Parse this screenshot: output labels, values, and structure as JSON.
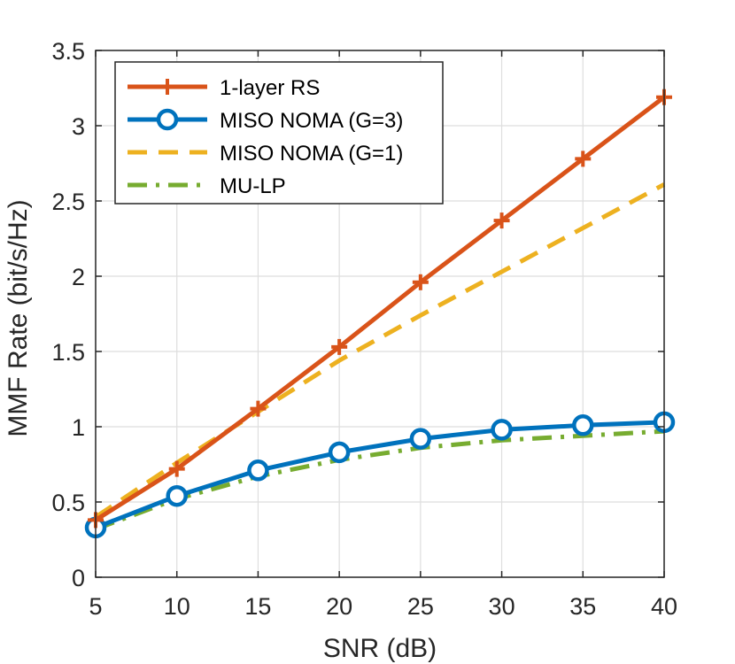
{
  "chart_data": {
    "type": "line",
    "title": "",
    "xlabel": "SNR (dB)",
    "ylabel": "MMF Rate (bit/s/Hz)",
    "x": [
      5,
      10,
      15,
      20,
      25,
      30,
      35,
      40
    ],
    "xlim": [
      5,
      40
    ],
    "ylim": [
      0,
      3.5
    ],
    "xticks": [
      5,
      10,
      15,
      20,
      25,
      30,
      35,
      40
    ],
    "yticks": [
      0,
      0.5,
      1,
      1.5,
      2,
      2.5,
      3,
      3.5
    ],
    "ytick_labels": [
      "0",
      "0.5",
      "1",
      "1.5",
      "2",
      "2.5",
      "3",
      "3.5"
    ],
    "grid": true,
    "legend_position": "top-left",
    "series": [
      {
        "name": "1-layer RS",
        "values": [
          0.38,
          0.72,
          1.12,
          1.53,
          1.96,
          2.37,
          2.78,
          3.19
        ],
        "color": "#D95319",
        "line_style": "solid",
        "marker": "plus"
      },
      {
        "name": "MISO NOMA (G=3)",
        "values": [
          0.33,
          0.54,
          0.71,
          0.83,
          0.92,
          0.98,
          1.01,
          1.03
        ],
        "color": "#0072BD",
        "line_style": "solid",
        "marker": "circle"
      },
      {
        "name": "MISO NOMA (G=1)",
        "values": [
          0.4,
          0.76,
          1.1,
          1.44,
          1.74,
          2.03,
          2.32,
          2.61
        ],
        "color": "#EDB120",
        "line_style": "dashed",
        "marker": "none"
      },
      {
        "name": "MU-LP",
        "values": [
          0.32,
          0.52,
          0.67,
          0.78,
          0.86,
          0.91,
          0.94,
          0.97
        ],
        "color": "#77AC30",
        "line_style": "dashdot",
        "marker": "none"
      }
    ]
  }
}
